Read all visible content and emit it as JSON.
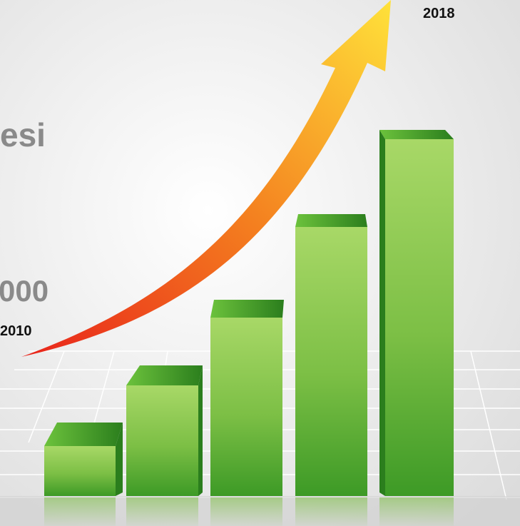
{
  "texts": {
    "heading_fragment": "esi",
    "value_fragment": "000",
    "start_year": "2010",
    "end_year": "2018"
  }
}
